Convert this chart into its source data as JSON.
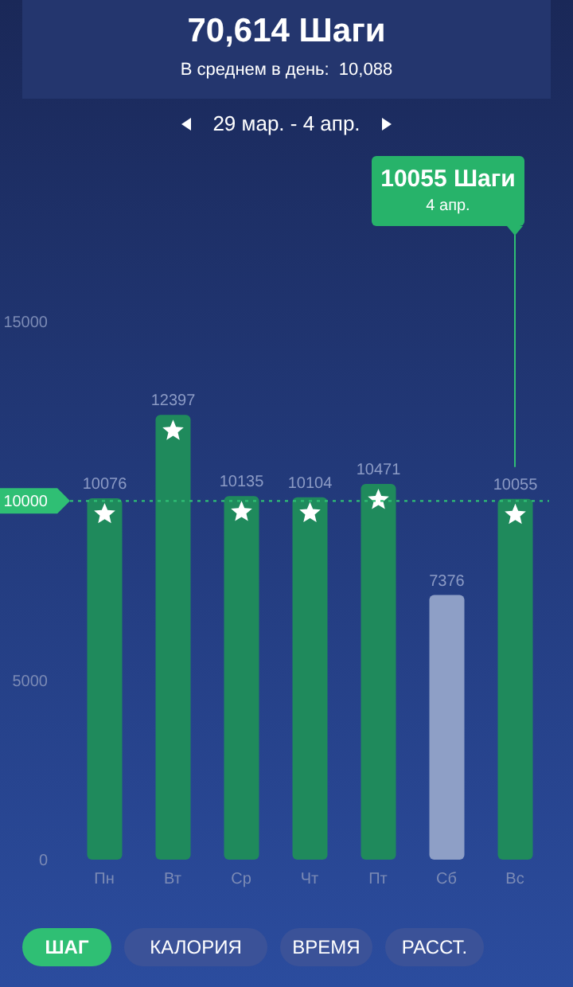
{
  "chart_data": {
    "type": "bar",
    "title": "70,614 Шаги",
    "subtitle": "В среднем в день:  10,088",
    "categories": [
      "Пн",
      "Вт",
      "Ср",
      "Чт",
      "Пт",
      "Сб",
      "Вс"
    ],
    "values": [
      10076,
      12397,
      10135,
      10104,
      10471,
      7376,
      10055
    ],
    "colors": [
      "#1f8a5c",
      "#1f8a5c",
      "#1f8a5c",
      "#1f8a5c",
      "#1f8a5c",
      "#8e9fc6",
      "#1f8a5c"
    ],
    "ylim": [
      0,
      15000
    ],
    "yticks": [
      0,
      5000,
      10000,
      15000
    ],
    "data_labels": true,
    "ref_lines": [
      {
        "axis": "y",
        "value": 10000,
        "color": "#2fbf74",
        "line_style": "dotted"
      }
    ],
    "annotations": [
      "29 мар. - 4 апр.",
      "10055 Шаги",
      "4 апр.",
      "ШАГ",
      "КАЛОРИЯ",
      "ВРЕМЯ",
      "РАССТ."
    ]
  }
}
